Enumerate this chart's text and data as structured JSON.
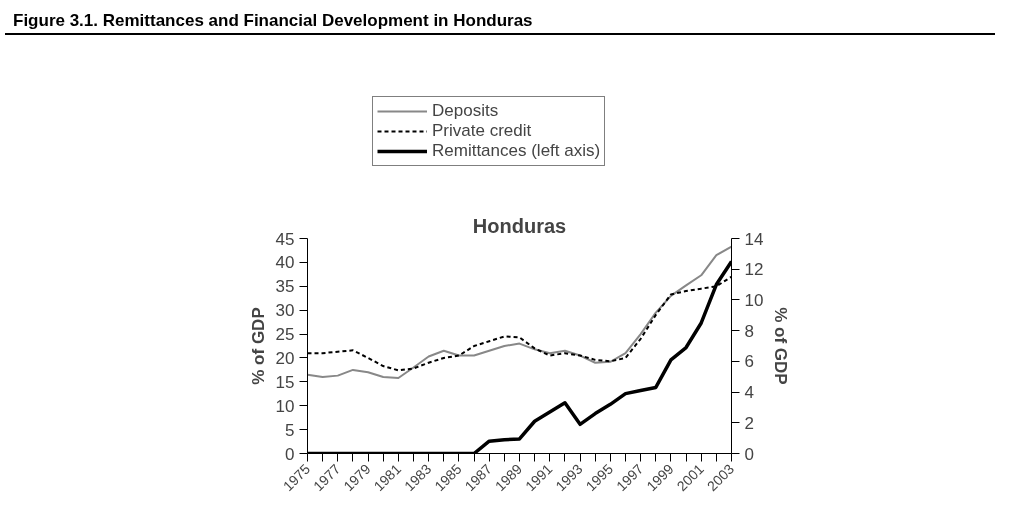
{
  "chart_data": {
    "type": "line",
    "title": "Figure 3.1. Remittances and Financial Development in Honduras",
    "subtitle": "Honduras",
    "ylabel": "% of GDP",
    "y2label": "% of GDP",
    "x": [
      1975,
      1976,
      1977,
      1978,
      1979,
      1980,
      1981,
      1982,
      1983,
      1984,
      1985,
      1986,
      1987,
      1988,
      1989,
      1990,
      1991,
      1992,
      1993,
      1994,
      1995,
      1996,
      1997,
      1998,
      1999,
      2000,
      2001,
      2002,
      2003
    ],
    "series": [
      {
        "name": "Deposits",
        "color": "#888888",
        "line_style": "solid",
        "values": [
          16.5,
          16,
          16.3,
          17.5,
          17,
          16,
          15.8,
          18,
          20.3,
          21.5,
          20.5,
          20.5,
          21.5,
          22.5,
          23,
          21.8,
          21,
          21.5,
          20.5,
          19,
          19.2,
          21,
          25,
          29.5,
          33,
          35.2,
          37.3,
          41.5,
          43.3
        ]
      },
      {
        "name": "Private credit",
        "color": "#000000",
        "line_style": "dashed",
        "values": [
          21,
          21,
          21.3,
          21.6,
          20,
          18.3,
          17.4,
          17.8,
          19,
          20,
          20.5,
          22.5,
          23.5,
          24.5,
          24.3,
          22,
          20.5,
          21,
          20.5,
          19.6,
          19.3,
          20,
          24,
          29,
          33.3,
          34,
          34.5,
          35,
          37
        ]
      },
      {
        "name": "Remittances (left axis)",
        "color": "#000000",
        "line_style": "solid",
        "axis": "y2",
        "values": [
          0,
          0,
          0,
          0,
          0,
          0,
          0,
          0,
          0,
          0,
          0,
          0,
          0.8,
          0.9,
          0.95,
          2.1,
          2.7,
          3.3,
          1.9,
          2.6,
          3.2,
          3.9,
          4.1,
          4.3,
          6.1,
          6.9,
          8.5,
          11,
          12.5
        ]
      }
    ],
    "xlim": [
      1975,
      2003
    ],
    "xticks": [
      1975,
      {
        "value": 1976,
        "label": null
      },
      1977,
      {
        "value": 1978,
        "label": null
      },
      1979,
      {
        "value": 1980,
        "label": null
      },
      1981,
      {
        "value": 1982,
        "label": null
      },
      1983,
      {
        "value": 1984,
        "label": null
      },
      1985,
      {
        "value": 1986,
        "label": null
      },
      1987,
      {
        "value": 1988,
        "label": null
      },
      1989,
      {
        "value": 1990,
        "label": null
      },
      1991,
      {
        "value": 1992,
        "label": null
      },
      1993,
      {
        "value": 1994,
        "label": null
      },
      1995,
      {
        "value": 1996,
        "label": null
      },
      1997,
      {
        "value": 1998,
        "label": null
      },
      1999,
      {
        "value": 2000,
        "label": null
      },
      2001,
      {
        "value": 2002,
        "label": null
      },
      2003
    ],
    "ylim": [
      0,
      45
    ],
    "yticks": [
      0,
      5,
      10,
      15,
      20,
      25,
      30,
      35,
      40,
      45
    ],
    "y2lim": [
      0,
      14
    ],
    "y2ticks": [
      0,
      2,
      4,
      6,
      8,
      10,
      12,
      14
    ],
    "grid": false,
    "legend": "top"
  }
}
